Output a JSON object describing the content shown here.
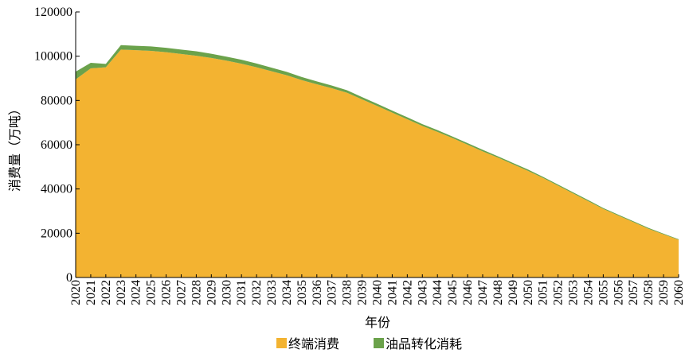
{
  "chart_data": {
    "type": "area",
    "stacked": true,
    "xlabel": "年份",
    "ylabel": "消费量（万吨）",
    "ylim": [
      0,
      120000
    ],
    "yticks": [
      0,
      20000,
      40000,
      60000,
      80000,
      100000,
      120000
    ],
    "x": [
      "2020",
      "2021",
      "2022",
      "2023",
      "2024",
      "2025",
      "2026",
      "2027",
      "2028",
      "2029",
      "2030",
      "2031",
      "2032",
      "2033",
      "2034",
      "2035",
      "2036",
      "2037",
      "2038",
      "2039",
      "2040",
      "2041",
      "2042",
      "2043",
      "2044",
      "2045",
      "2046",
      "2047",
      "2048",
      "2049",
      "2050",
      "2051",
      "2052",
      "2053",
      "2054",
      "2055",
      "2056",
      "2057",
      "2058",
      "2059",
      "2060"
    ],
    "series": [
      {
        "name": "终端消费",
        "color": "#F3B331",
        "values": [
          89500,
          94500,
          95000,
          103000,
          102700,
          102400,
          101800,
          101000,
          100200,
          99200,
          98000,
          96600,
          95000,
          93200,
          91400,
          89200,
          87300,
          85500,
          83500,
          80500,
          77500,
          74500,
          71500,
          68500,
          65800,
          63000,
          60000,
          57000,
          54200,
          51200,
          48200,
          45000,
          41500,
          38000,
          34500,
          31000,
          28000,
          25000,
          22000,
          19500,
          17000
        ]
      },
      {
        "name": "油品转化消耗",
        "color": "#6BA24B",
        "values": [
          3500,
          2500,
          1500,
          2000,
          2000,
          2000,
          2000,
          2000,
          2000,
          1900,
          1800,
          1800,
          1700,
          1600,
          1500,
          1400,
          1300,
          1200,
          1100,
          1000,
          1000,
          900,
          900,
          800,
          800,
          700,
          700,
          700,
          600,
          600,
          600,
          500,
          500,
          500,
          500,
          400,
          400,
          400,
          400,
          300,
          300
        ]
      }
    ],
    "legend_position": "bottom-center",
    "grid": false
  }
}
